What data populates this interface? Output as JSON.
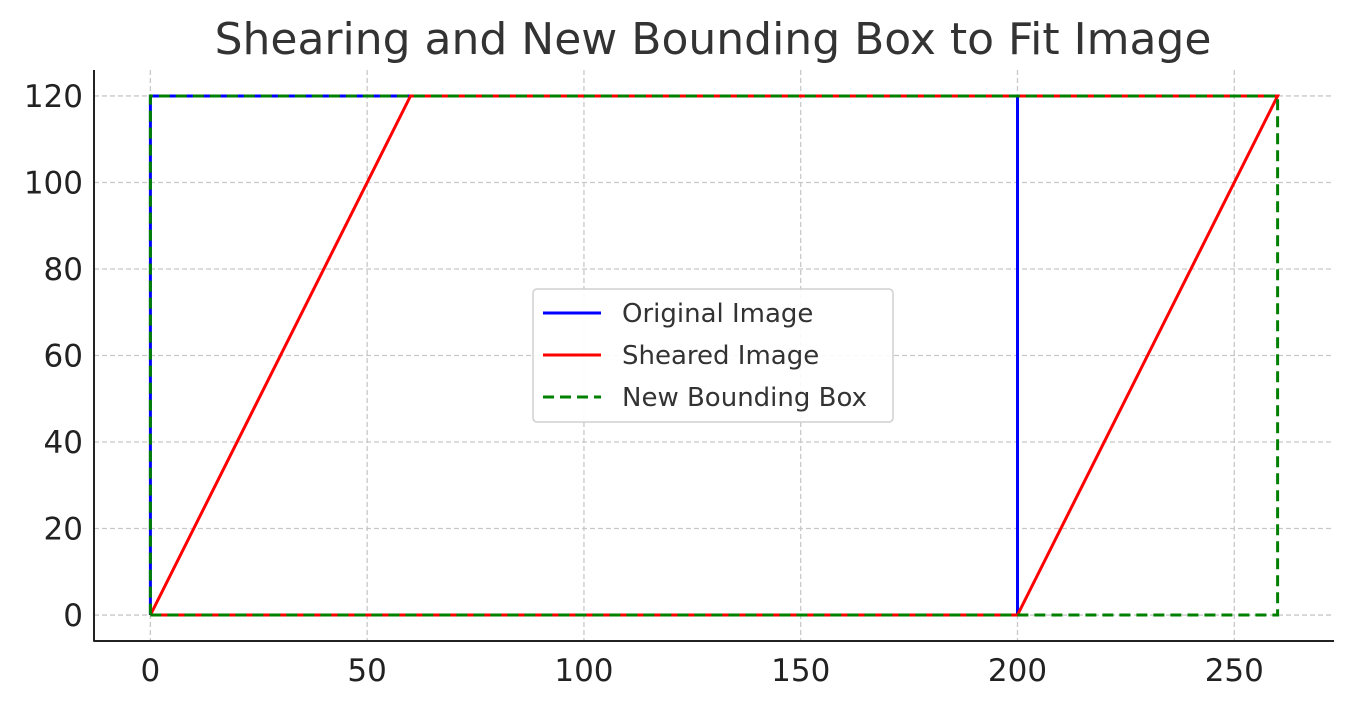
{
  "chart_data": {
    "type": "line",
    "title": "Shearing and New Bounding Box to Fit Image",
    "xlabel": "",
    "ylabel": "",
    "xlim": [
      -13,
      273
    ],
    "ylim": [
      -6,
      126
    ],
    "x_ticks": [
      0,
      50,
      100,
      150,
      200,
      250
    ],
    "y_ticks": [
      0,
      20,
      40,
      60,
      80,
      100,
      120
    ],
    "x_tick_labels": [
      "0",
      "50",
      "100",
      "150",
      "200",
      "250"
    ],
    "y_tick_labels": [
      "0",
      "20",
      "40",
      "60",
      "80",
      "100",
      "120"
    ],
    "grid": true,
    "legend_position": "center",
    "series": [
      {
        "name": "Original Image",
        "color": "#0000ff",
        "style": "solid",
        "points": [
          [
            0,
            0
          ],
          [
            200,
            0
          ],
          [
            200,
            120
          ],
          [
            0,
            120
          ],
          [
            0,
            0
          ]
        ]
      },
      {
        "name": "Sheared Image",
        "color": "#ff0000",
        "style": "solid",
        "points": [
          [
            0,
            0
          ],
          [
            200,
            0
          ],
          [
            260,
            120
          ],
          [
            60,
            120
          ],
          [
            0,
            0
          ]
        ]
      },
      {
        "name": "New Bounding Box",
        "color": "#008000",
        "style": "dashed",
        "points": [
          [
            0,
            0
          ],
          [
            260,
            0
          ],
          [
            260,
            120
          ],
          [
            0,
            120
          ],
          [
            0,
            0
          ]
        ]
      }
    ]
  }
}
